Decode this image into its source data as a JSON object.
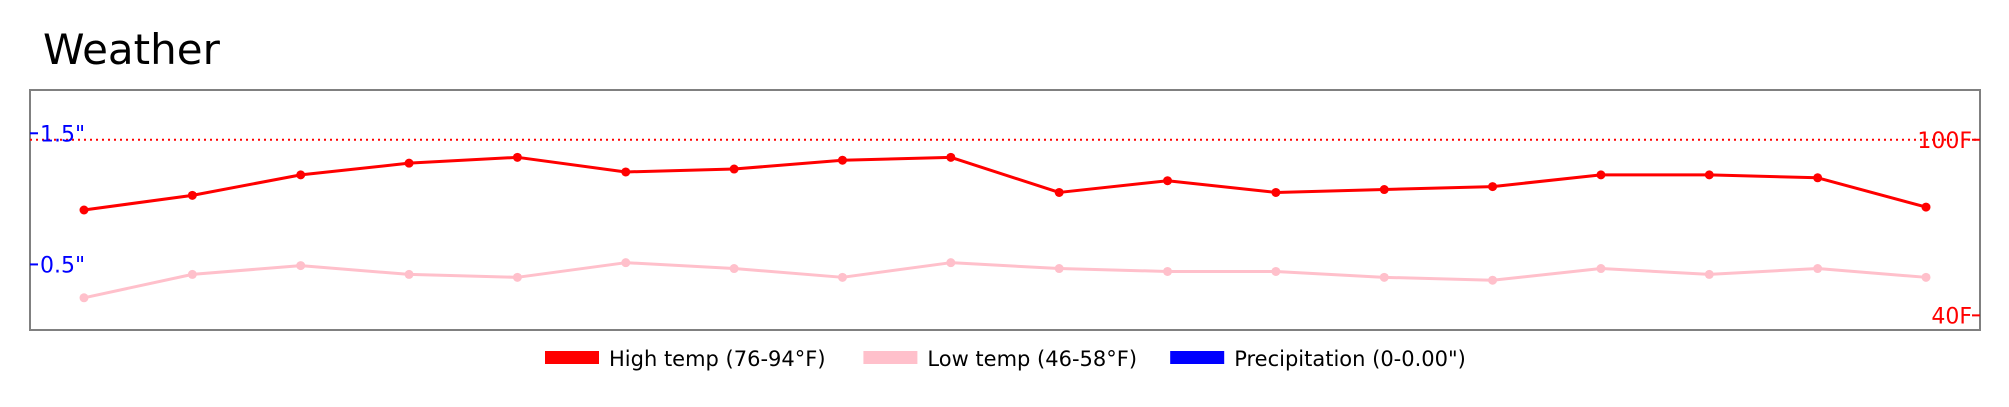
{
  "chart_data": {
    "type": "line",
    "title": "Weather",
    "x": [
      1,
      2,
      3,
      4,
      5,
      6,
      7,
      8,
      9,
      10,
      11,
      12,
      13,
      14,
      15,
      16,
      17,
      18
    ],
    "series": [
      {
        "name": "High temp (76-94°F)",
        "axis": "temperature",
        "color": "#ff0000",
        "values": [
          76,
          81,
          88,
          92,
          94,
          89,
          90,
          93,
          94,
          82,
          86,
          82,
          83,
          84,
          88,
          88,
          87,
          77
        ]
      },
      {
        "name": "Low temp (46-58°F)",
        "axis": "temperature",
        "color": "#ffc0cb",
        "values": [
          46,
          54,
          57,
          54,
          53,
          58,
          56,
          53,
          58,
          56,
          55,
          55,
          53,
          52,
          56,
          54,
          56,
          53
        ]
      },
      {
        "name": "Precipitation (0-0.00\")",
        "axis": "precipitation",
        "color": "#0000ff",
        "values": [
          0,
          0,
          0,
          0,
          0,
          0,
          0,
          0,
          0,
          0,
          0,
          0,
          0,
          0,
          0,
          0,
          0,
          0
        ]
      }
    ],
    "temperature_axis": {
      "ticks": [
        {
          "value": 100,
          "label": "100F"
        },
        {
          "value": 40,
          "label": "40F"
        }
      ],
      "color": "#ff0000",
      "reference_line": 100
    },
    "precipitation_axis": {
      "ticks": [
        {
          "value": 1.5,
          "label": "1.5\""
        },
        {
          "value": 0.5,
          "label": "0.5\""
        }
      ],
      "color": "#0000ff"
    },
    "ylim_temperature": [
      35,
      117
    ],
    "ylim_precipitation": [
      0,
      1.83
    ],
    "grid": false,
    "legend_position": "bottom-center"
  }
}
